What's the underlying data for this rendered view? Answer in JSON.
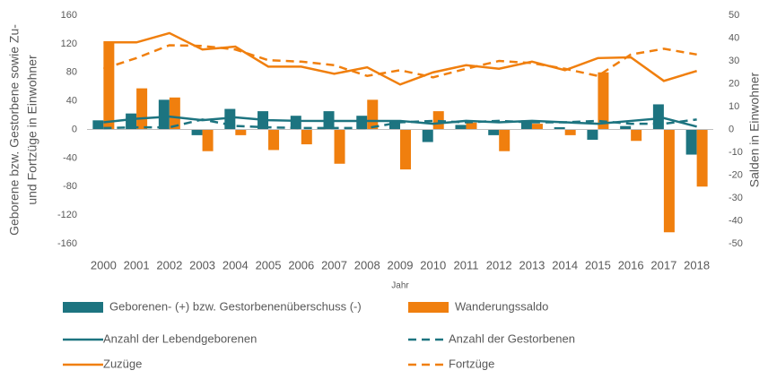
{
  "chart_data": {
    "type": "bar-line",
    "y_label": [
      "Geborene bzw. Gestorbene sowie Zu-",
      "und Fortzüge in Einwohner"
    ],
    "y2_label": "Salden in Einwohner",
    "x_label": "Jahr",
    "categories": [
      "2000",
      "2001",
      "2002",
      "2003",
      "2004",
      "2005",
      "2006",
      "2007",
      "2008",
      "2009",
      "2010",
      "2011",
      "2012",
      "2013",
      "2014",
      "2015",
      "2016",
      "2017",
      "2018"
    ],
    "ylim": [
      -160,
      160
    ],
    "yticks": [
      -160,
      -120,
      -80,
      -40,
      0,
      40,
      80,
      120,
      160
    ],
    "y2lim": [
      -50,
      50
    ],
    "y2ticks": [
      -50,
      -40,
      -30,
      -20,
      -10,
      0,
      10,
      20,
      30,
      40,
      50
    ],
    "legend": "bottom",
    "series": [
      {
        "name": "Geborenen- (+) bzw. Gestorbenenüberschuss (-)",
        "color": "#1d7480",
        "kind": "bar",
        "axis": "y2",
        "values": [
          4,
          7,
          13,
          -2.5,
          9,
          8,
          6,
          8,
          6,
          4,
          -5.5,
          2,
          -2.5,
          4,
          1,
          -4.5,
          1.5,
          11,
          -11
        ]
      },
      {
        "name": "Wanderungssaldo",
        "color": "#f07f0e",
        "kind": "bar",
        "axis": "y2",
        "values": [
          38,
          18,
          14,
          -9.5,
          -2.5,
          -9,
          -6.5,
          -15,
          13,
          -17.5,
          8,
          3,
          -9.5,
          2.5,
          -2.5,
          25,
          -5,
          -45,
          -25
        ]
      },
      {
        "name": "Anzahl der Lebendgeborenen",
        "color": "#1d7480",
        "kind": "line",
        "dashed": false,
        "values": [
          10,
          15,
          18,
          13,
          17,
          13,
          12,
          12,
          12,
          12,
          8,
          12,
          10,
          12,
          10,
          8,
          12,
          16,
          4
        ]
      },
      {
        "name": "Anzahl der Gestorbenen",
        "color": "#1d7480",
        "kind": "line",
        "dashed": true,
        "values": [
          2,
          3,
          3,
          14,
          5,
          3,
          2,
          2,
          2,
          10,
          12,
          10,
          12,
          10,
          10,
          12,
          8,
          8,
          14
        ]
      },
      {
        "name": "Zuzüge",
        "color": "#f07f0e",
        "kind": "line",
        "dashed": false,
        "values": [
          122,
          122,
          135,
          112,
          116,
          88,
          88,
          78,
          87,
          63,
          80,
          90,
          85,
          95,
          83,
          100,
          101,
          68,
          82
        ]
      },
      {
        "name": "Fortzüge",
        "color": "#f07f0e",
        "kind": "line",
        "dashed": true,
        "values": [
          85,
          100,
          118,
          117,
          112,
          97,
          95,
          90,
          75,
          83,
          73,
          85,
          96,
          93,
          85,
          75,
          105,
          113,
          105
        ]
      }
    ]
  }
}
